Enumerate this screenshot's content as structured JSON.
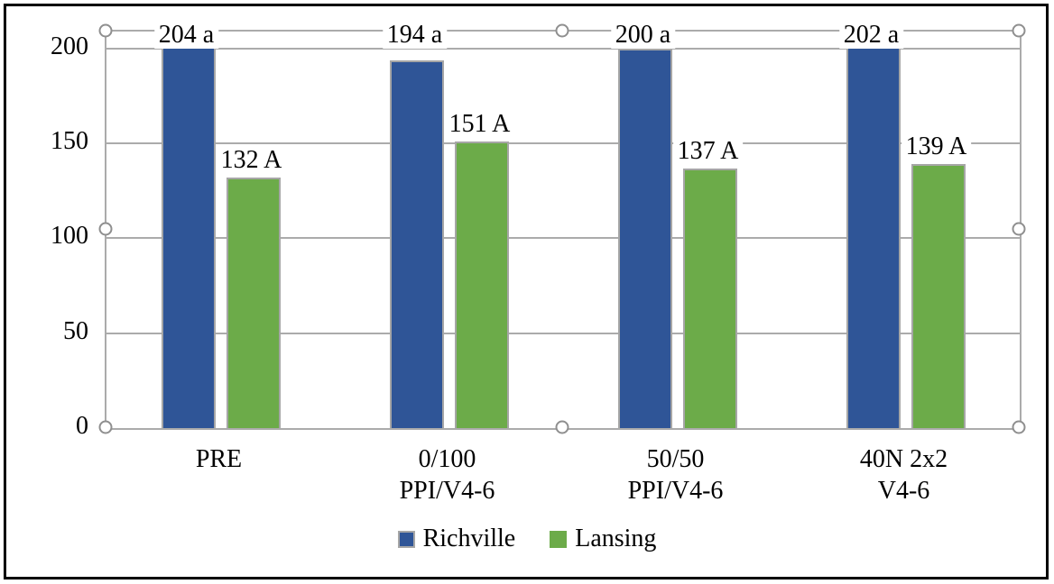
{
  "chart_data": {
    "type": "bar",
    "title": "",
    "categories": [
      "PRE",
      "0/100 PPI/V4-6",
      "50/50 PPI/V4-6",
      "40N 2x2 V4-6"
    ],
    "category_lines": [
      [
        "PRE"
      ],
      [
        "0/100",
        "PPI/V4-6"
      ],
      [
        "50/50",
        "PPI/V4-6"
      ],
      [
        "40N 2x2",
        "V4-6"
      ]
    ],
    "series": [
      {
        "name": "Richville",
        "color": "#2f5597",
        "values": [
          204,
          194,
          200,
          202
        ],
        "data_labels": [
          "204 a",
          "194 a",
          "200 a",
          "202 a"
        ]
      },
      {
        "name": "Lansing",
        "color": "#6cab49",
        "values": [
          132,
          151,
          137,
          139
        ],
        "data_labels": [
          "132 A",
          "151 A",
          "137 A",
          "139 A"
        ]
      }
    ],
    "xlabel": "",
    "ylabel": "",
    "yticks": [
      0,
      50,
      100,
      150,
      200
    ],
    "ylim": [
      0,
      209
    ],
    "grid": true,
    "legend_position": "bottom",
    "bar_border_color": "#a6a6a6",
    "gridline_color": "#ababab"
  },
  "selection": {
    "plot_area_selected": true,
    "handle_count": 8
  },
  "frame_color": "#000000"
}
